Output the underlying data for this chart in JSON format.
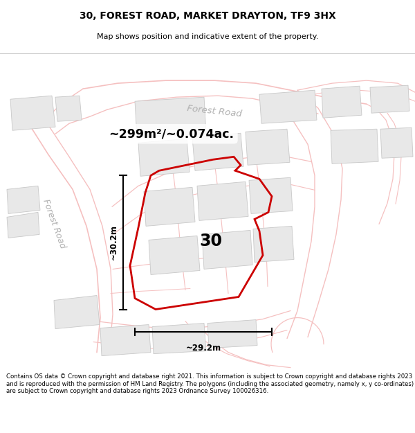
{
  "title": "30, FOREST ROAD, MARKET DRAYTON, TF9 3HX",
  "subtitle": "Map shows position and indicative extent of the property.",
  "area_label": "~299m²/~0.074ac.",
  "plot_number": "30",
  "dim_height": "~30.2m",
  "dim_width": "~29.2m",
  "road_label_top": "Forest Road",
  "road_label_left": "Forest Road",
  "footer_text": "Contains OS data © Crown copyright and database right 2021. This information is subject to Crown copyright and database rights 2023 and is reproduced with the permission of HM Land Registry. The polygons (including the associated geometry, namely x, y co-ordinates) are subject to Crown copyright and database rights 2023 Ordnance Survey 100026316.",
  "bg_color": "#ffffff",
  "road_color": "#f5c0c0",
  "road_lw": 1.0,
  "building_color": "#e8e8e8",
  "building_edge": "#c8c8c8",
  "highlight_color": "#cc0000",
  "road_label_color": "#b0b0b0"
}
